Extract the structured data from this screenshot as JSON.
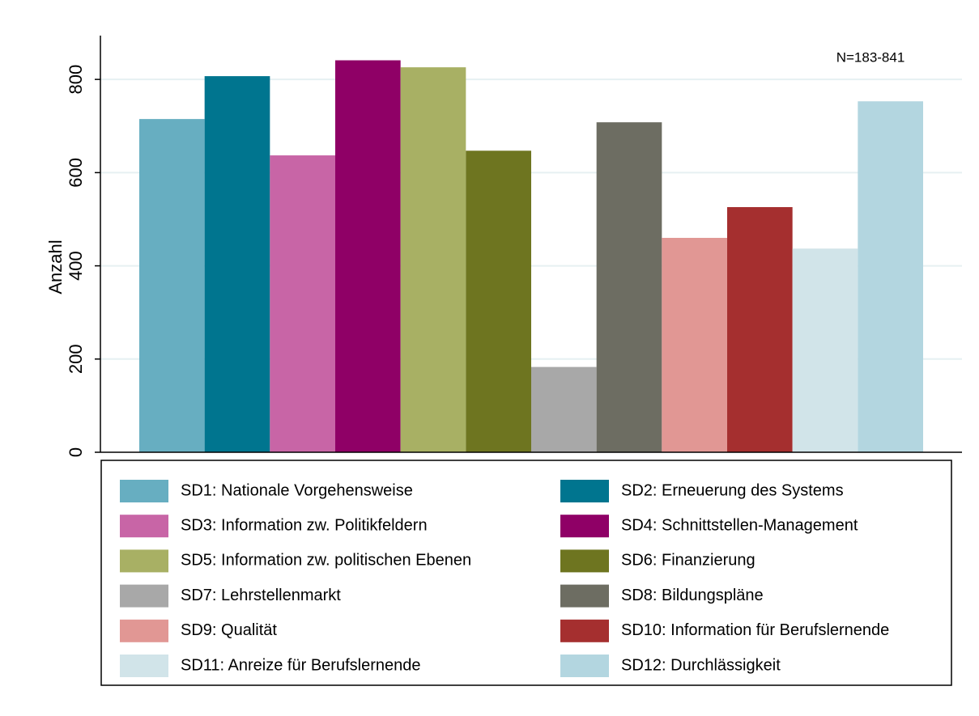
{
  "chart_data": {
    "type": "bar",
    "y_label": "Anzahl",
    "annotation": "N=183-841",
    "categories": [
      "SD1: Nationale Vorgehensweise",
      "SD2: Erneuerung des Systems",
      "SD3: Information zw. Politikfeldern",
      "SD4: Schnittstellen-Management",
      "SD5: Information zw. politischen Ebenen",
      "SD6: Finanzierung",
      "SD7: Lehrstellenmarkt",
      "SD8: Bildungspläne",
      "SD9: Qualität",
      "SD10: Information für Berufslernende",
      "SD11: Anreize für Berufslernende",
      "SD12: Durchlässigkeit"
    ],
    "values": [
      715,
      807,
      637,
      841,
      826,
      647,
      183,
      708,
      460,
      526,
      437,
      753
    ],
    "colors": [
      "#67aec1",
      "#00758f",
      "#c865a6",
      "#8f0066",
      "#a8b064",
      "#6e7520",
      "#a8a8a8",
      "#6d6d62",
      "#e19794",
      "#a52f2f",
      "#d1e4e9",
      "#b3d6e0"
    ],
    "ylim": [
      0,
      894
    ],
    "yticks": [
      0,
      200,
      400,
      600,
      800
    ],
    "grid": true,
    "legend": "bottom"
  }
}
